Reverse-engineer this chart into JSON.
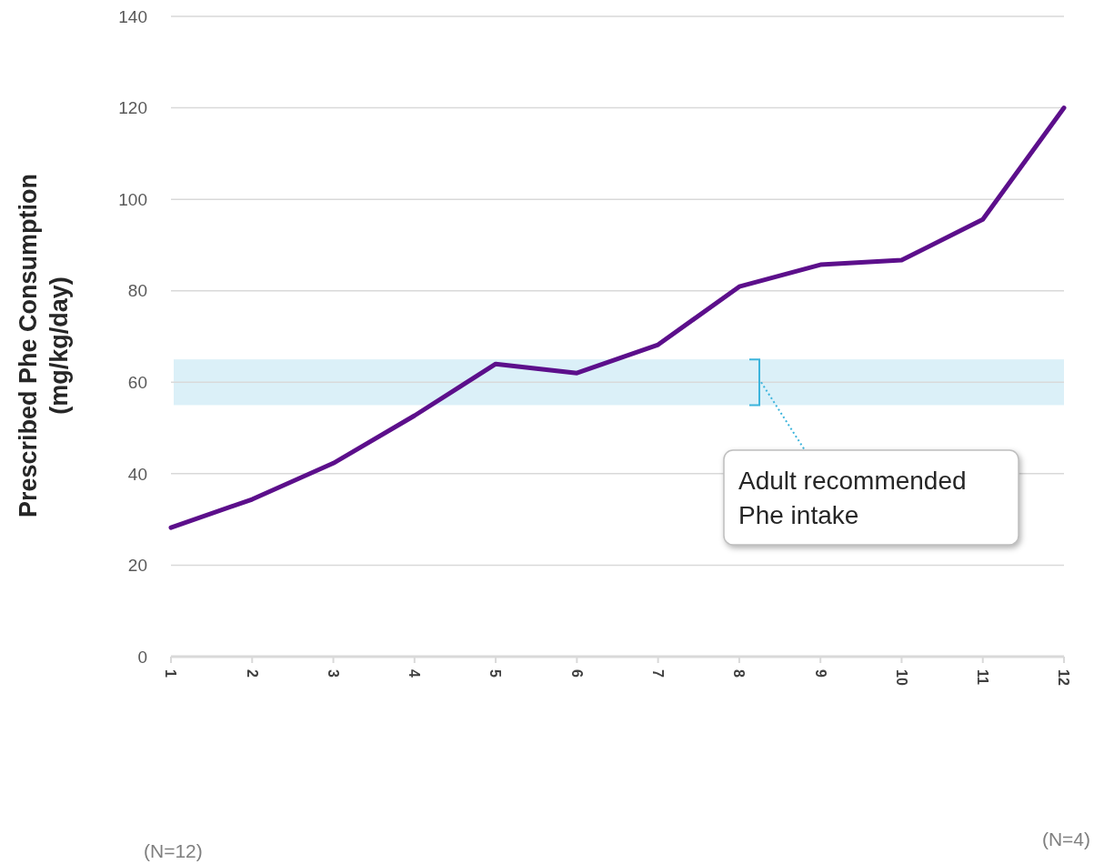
{
  "chart_data": {
    "type": "line",
    "ylabel": "Prescribed Phe Consumption\n(mg/kg/day)",
    "categories": [
      "1",
      "2",
      "3",
      "4",
      "5",
      "6",
      "7",
      "8",
      "9",
      "10",
      "11",
      "12"
    ],
    "series": [
      {
        "color": "#5c0f8b",
        "values": [
          28.2,
          34.4,
          42.3,
          52.7,
          64,
          62,
          68.2,
          80.9,
          85.7,
          86.7,
          95.6,
          120
        ]
      }
    ],
    "ylim": [
      0,
      140
    ],
    "yticks": [
      0,
      20,
      40,
      60,
      80,
      100,
      120,
      140
    ],
    "grid": "y",
    "bands": [
      {
        "axis": "y",
        "from": 55,
        "to": 65,
        "label": "Adult recommended Phe intake",
        "color": "#dbf0f8"
      }
    ],
    "annotations": [
      "(N=12)",
      "(N=4)"
    ],
    "marker": "none",
    "line_style": "solid"
  }
}
